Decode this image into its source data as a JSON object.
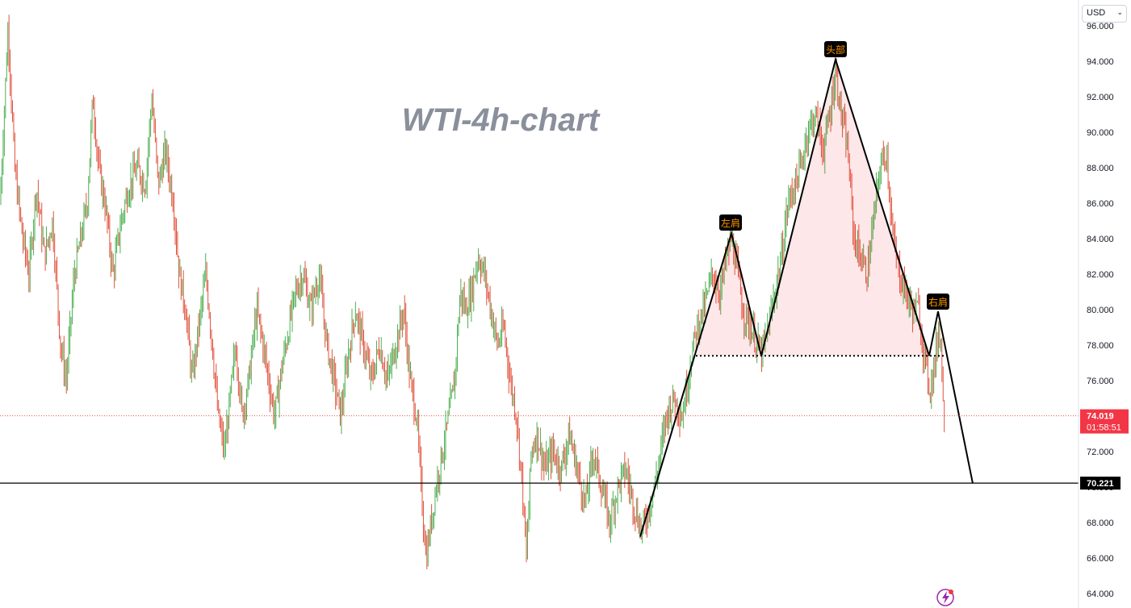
{
  "chart_data": {
    "type": "candlestick",
    "title": "WTI-4h-chart",
    "y_axis": {
      "ticks": [
        "64.000",
        "66.000",
        "68.000",
        "70.000",
        "72.000",
        "74.000",
        "76.000",
        "78.000",
        "80.000",
        "82.000",
        "84.000",
        "86.000",
        "88.000",
        "90.000",
        "92.000",
        "94.000",
        "96.000"
      ],
      "range": [
        63.6,
        96.5
      ],
      "position": "right"
    },
    "currency": "USD",
    "current_price": {
      "value": "74.019",
      "countdown": "01:58:51",
      "level": 74.019
    },
    "horizontal_line": {
      "value": "70.221",
      "level": 70.221
    },
    "pattern": {
      "labels": {
        "left_shoulder": "左肩",
        "head": "头部",
        "right_shoulder": "右肩"
      },
      "levels": {
        "left_shoulder": 84.3,
        "head": 94.1,
        "right_shoulder": 79.9,
        "neckline": 77.4,
        "start": 67.2,
        "target": 70.2
      }
    },
    "price_path": [
      [
        0,
        86
      ],
      [
        10,
        96
      ],
      [
        18,
        88
      ],
      [
        28,
        84
      ],
      [
        36,
        82
      ],
      [
        45,
        87
      ],
      [
        55,
        83
      ],
      [
        65,
        85
      ],
      [
        75,
        78
      ],
      [
        82,
        76
      ],
      [
        92,
        82
      ],
      [
        100,
        84
      ],
      [
        108,
        86
      ],
      [
        115,
        92
      ],
      [
        122,
        88
      ],
      [
        130,
        86
      ],
      [
        140,
        82
      ],
      [
        150,
        85
      ],
      [
        160,
        87
      ],
      [
        170,
        88
      ],
      [
        180,
        87
      ],
      [
        188,
        92
      ],
      [
        196,
        87
      ],
      [
        205,
        89
      ],
      [
        215,
        86
      ],
      [
        222,
        82
      ],
      [
        230,
        80
      ],
      [
        238,
        76
      ],
      [
        246,
        79
      ],
      [
        255,
        82
      ],
      [
        263,
        78
      ],
      [
        270,
        74
      ],
      [
        278,
        72
      ],
      [
        285,
        75
      ],
      [
        292,
        78
      ],
      [
        300,
        74
      ],
      [
        308,
        76
      ],
      [
        318,
        80
      ],
      [
        326,
        78
      ],
      [
        333,
        76
      ],
      [
        340,
        74
      ],
      [
        350,
        77
      ],
      [
        358,
        79
      ],
      [
        366,
        81
      ],
      [
        375,
        82
      ],
      [
        385,
        80
      ],
      [
        395,
        82
      ],
      [
        405,
        78
      ],
      [
        414,
        76
      ],
      [
        422,
        74
      ],
      [
        430,
        77
      ],
      [
        440,
        80
      ],
      [
        450,
        78
      ],
      [
        460,
        76
      ],
      [
        470,
        78
      ],
      [
        480,
        76
      ],
      [
        490,
        78
      ],
      [
        500,
        80
      ],
      [
        508,
        76
      ],
      [
        516,
        74
      ],
      [
        523,
        69
      ],
      [
        528,
        66
      ],
      [
        534,
        68
      ],
      [
        540,
        70
      ],
      [
        548,
        72
      ],
      [
        556,
        74
      ],
      [
        563,
        76
      ],
      [
        570,
        81
      ],
      [
        577,
        80
      ],
      [
        584,
        81
      ],
      [
        592,
        83
      ],
      [
        600,
        82
      ],
      [
        608,
        80
      ],
      [
        616,
        78
      ],
      [
        624,
        79
      ],
      [
        632,
        76
      ],
      [
        640,
        74
      ],
      [
        647,
        70
      ],
      [
        652,
        66
      ],
      [
        658,
        72
      ],
      [
        665,
        73
      ],
      [
        675,
        71
      ],
      [
        685,
        72
      ],
      [
        695,
        71
      ],
      [
        705,
        73
      ],
      [
        715,
        71
      ],
      [
        725,
        69
      ],
      [
        735,
        72
      ],
      [
        745,
        70
      ],
      [
        755,
        68
      ],
      [
        765,
        70
      ],
      [
        775,
        71
      ],
      [
        785,
        69
      ],
      [
        795,
        67.5
      ],
      [
        805,
        69
      ],
      [
        815,
        71
      ],
      [
        825,
        74
      ],
      [
        835,
        75
      ],
      [
        845,
        74
      ],
      [
        855,
        77
      ],
      [
        863,
        79
      ],
      [
        872,
        80
      ],
      [
        882,
        82
      ],
      [
        892,
        81
      ],
      [
        900,
        83
      ],
      [
        906,
        84
      ],
      [
        914,
        82
      ],
      [
        920,
        80
      ],
      [
        930,
        79
      ],
      [
        938,
        78
      ],
      [
        944,
        77.5
      ],
      [
        952,
        79
      ],
      [
        960,
        81
      ],
      [
        968,
        83
      ],
      [
        976,
        86
      ],
      [
        984,
        87
      ],
      [
        992,
        88
      ],
      [
        1000,
        90
      ],
      [
        1010,
        91
      ],
      [
        1020,
        89
      ],
      [
        1028,
        91
      ],
      [
        1035,
        93.5
      ],
      [
        1042,
        91
      ],
      [
        1050,
        89
      ],
      [
        1058,
        84
      ],
      [
        1066,
        83
      ],
      [
        1074,
        82
      ],
      [
        1082,
        85
      ],
      [
        1090,
        88
      ],
      [
        1098,
        89
      ],
      [
        1106,
        84
      ],
      [
        1114,
        82
      ],
      [
        1122,
        81
      ],
      [
        1130,
        80
      ],
      [
        1138,
        80
      ],
      [
        1146,
        77
      ],
      [
        1152,
        75.5
      ],
      [
        1158,
        77
      ],
      [
        1163,
        79
      ],
      [
        1166,
        78
      ],
      [
        1169,
        73.5
      ],
      [
        1172,
        74
      ]
    ]
  }
}
